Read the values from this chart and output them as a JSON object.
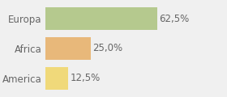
{
  "categories": [
    "Europa",
    "Africa",
    "America"
  ],
  "values": [
    62.5,
    25.0,
    12.5
  ],
  "bar_colors": [
    "#b5c98e",
    "#e8b87a",
    "#f0d97a"
  ],
  "labels": [
    "62,5%",
    "25,0%",
    "12,5%"
  ],
  "background_color": "#f0f0f0",
  "xlim": [
    0,
    100
  ],
  "label_fontsize": 8.5,
  "category_fontsize": 8.5
}
